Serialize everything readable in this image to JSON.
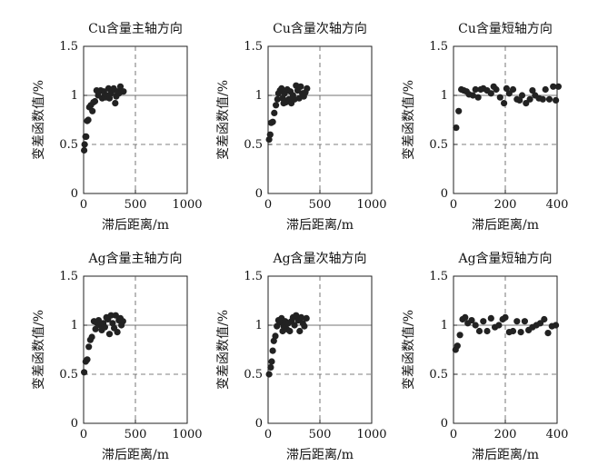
{
  "chart_data": [
    {
      "type": "scatter",
      "title": "Cu含量主轴方向",
      "xlabel": "滞后距离/m",
      "ylabel": "变差函数值/%",
      "xlim": [
        0,
        1000
      ],
      "ylim": [
        0,
        1.5
      ],
      "xticks": [
        "0",
        "500",
        "1000"
      ],
      "yticks": [
        "0",
        "0.5",
        "1",
        "1.5"
      ],
      "sill": 1,
      "nugget": 0.5,
      "range": 500,
      "points": [
        [
          5,
          0.44
        ],
        [
          10,
          0.5
        ],
        [
          18,
          0.58
        ],
        [
          25,
          0.58
        ],
        [
          35,
          0.74
        ],
        [
          45,
          0.75
        ],
        [
          55,
          0.88
        ],
        [
          70,
          0.9
        ],
        [
          85,
          0.84
        ],
        [
          95,
          0.93
        ],
        [
          110,
          0.94
        ],
        [
          125,
          1.05
        ],
        [
          140,
          1.0
        ],
        [
          150,
          1.04
        ],
        [
          165,
          1.05
        ],
        [
          180,
          0.97
        ],
        [
          195,
          1.04
        ],
        [
          205,
          1.0
        ],
        [
          215,
          0.98
        ],
        [
          225,
          1.0
        ],
        [
          240,
          1.07
        ],
        [
          250,
          0.97
        ],
        [
          265,
          1.02
        ],
        [
          275,
          1.05
        ],
        [
          290,
          1.07
        ],
        [
          305,
          0.92
        ],
        [
          315,
          0.99
        ],
        [
          325,
          1.04
        ],
        [
          340,
          1.02
        ],
        [
          355,
          1.09
        ],
        [
          370,
          1.04
        ],
        [
          385,
          1.04
        ]
      ]
    },
    {
      "type": "scatter",
      "title": "Cu含量次轴方向",
      "xlabel": "滞后距离/m",
      "ylabel": "变差函数值/%",
      "xlim": [
        0,
        1000
      ],
      "ylim": [
        0,
        1.5
      ],
      "xticks": [
        "0",
        "500",
        "1000"
      ],
      "yticks": [
        "0",
        "0.5",
        "1",
        "1.5"
      ],
      "sill": 1,
      "nugget": 0.5,
      "range": 500,
      "points": [
        [
          10,
          0.55
        ],
        [
          20,
          0.6
        ],
        [
          30,
          0.72
        ],
        [
          45,
          0.73
        ],
        [
          60,
          0.82
        ],
        [
          75,
          0.9
        ],
        [
          90,
          0.96
        ],
        [
          100,
          1.02
        ],
        [
          115,
          1.05
        ],
        [
          130,
          1.07
        ],
        [
          140,
          0.97
        ],
        [
          150,
          0.92
        ],
        [
          160,
          1.02
        ],
        [
          170,
          0.93
        ],
        [
          185,
          1.06
        ],
        [
          200,
          0.96
        ],
        [
          215,
          1.04
        ],
        [
          225,
          0.92
        ],
        [
          240,
          1.0
        ],
        [
          255,
          0.96
        ],
        [
          270,
          1.1
        ],
        [
          285,
          1.05
        ],
        [
          300,
          0.97
        ],
        [
          315,
          1.09
        ],
        [
          330,
          1.02
        ],
        [
          345,
          0.99
        ],
        [
          360,
          1.03
        ],
        [
          375,
          1.07
        ]
      ]
    },
    {
      "type": "scatter",
      "title": "Cu含量短轴方向",
      "xlabel": "滞后距离/m",
      "ylabel": "变差函数值/%",
      "xlim": [
        0,
        400
      ],
      "ylim": [
        0,
        1.5
      ],
      "xticks": [
        "0",
        "200",
        "400"
      ],
      "yticks": [
        "0",
        "0.5",
        "1",
        "1.5"
      ],
      "sill": 1,
      "nugget": 0.5,
      "range": 200,
      "points": [
        [
          10,
          0.67
        ],
        [
          20,
          0.84
        ],
        [
          30,
          1.06
        ],
        [
          40,
          1.05
        ],
        [
          50,
          1.04
        ],
        [
          60,
          1.01
        ],
        [
          75,
          1.0
        ],
        [
          85,
          1.06
        ],
        [
          95,
          0.98
        ],
        [
          105,
          1.06
        ],
        [
          115,
          1.07
        ],
        [
          130,
          1.05
        ],
        [
          145,
          1.02
        ],
        [
          155,
          1.09
        ],
        [
          165,
          1.06
        ],
        [
          180,
          0.98
        ],
        [
          195,
          0.92
        ],
        [
          205,
          1.07
        ],
        [
          215,
          1.02
        ],
        [
          230,
          1.06
        ],
        [
          245,
          0.96
        ],
        [
          255,
          0.95
        ],
        [
          265,
          1.0
        ],
        [
          280,
          0.92
        ],
        [
          295,
          0.96
        ],
        [
          305,
          1.05
        ],
        [
          315,
          1.0
        ],
        [
          330,
          0.97
        ],
        [
          345,
          0.96
        ],
        [
          355,
          1.06
        ],
        [
          370,
          0.96
        ],
        [
          385,
          1.09
        ],
        [
          395,
          0.95
        ],
        [
          405,
          1.09
        ]
      ]
    },
    {
      "type": "scatter",
      "title": "Ag含量主轴方向",
      "xlabel": "滞后距离/m",
      "ylabel": "变差函数值/%",
      "xlim": [
        0,
        1000
      ],
      "ylim": [
        0,
        1.5
      ],
      "xticks": [
        "0",
        "500",
        "1000"
      ],
      "yticks": [
        "0",
        "0.5",
        "1",
        "1.5"
      ],
      "sill": 1,
      "nugget": 0.5,
      "range": 500,
      "points": [
        [
          5,
          0.52
        ],
        [
          20,
          0.63
        ],
        [
          35,
          0.65
        ],
        [
          50,
          0.78
        ],
        [
          65,
          0.85
        ],
        [
          80,
          0.88
        ],
        [
          100,
          1.04
        ],
        [
          115,
          0.96
        ],
        [
          130,
          1.02
        ],
        [
          145,
          1.05
        ],
        [
          160,
          1.0
        ],
        [
          175,
          0.95
        ],
        [
          190,
          1.02
        ],
        [
          205,
          0.98
        ],
        [
          220,
          1.08
        ],
        [
          235,
          1.06
        ],
        [
          250,
          0.91
        ],
        [
          265,
          1.1
        ],
        [
          280,
          1.02
        ],
        [
          295,
          0.97
        ],
        [
          310,
          1.1
        ],
        [
          325,
          0.93
        ],
        [
          340,
          1.05
        ],
        [
          355,
          1.07
        ],
        [
          365,
          1.0
        ],
        [
          380,
          1.04
        ]
      ]
    },
    {
      "type": "scatter",
      "title": "Ag含量次轴方向",
      "xlabel": "滞后距离/m",
      "ylabel": "变差函数值/%",
      "xlim": [
        0,
        1000
      ],
      "ylim": [
        0,
        1.5
      ],
      "xticks": [
        "0",
        "500",
        "1000"
      ],
      "yticks": [
        "0",
        "0.5",
        "1",
        "1.5"
      ],
      "sill": 1,
      "nugget": 0.5,
      "range": 500,
      "points": [
        [
          10,
          0.5
        ],
        [
          25,
          0.57
        ],
        [
          35,
          0.63
        ],
        [
          45,
          0.74
        ],
        [
          55,
          0.84
        ],
        [
          70,
          0.89
        ],
        [
          85,
          0.99
        ],
        [
          100,
          1.05
        ],
        [
          115,
          1.03
        ],
        [
          130,
          1.07
        ],
        [
          140,
          0.94
        ],
        [
          150,
          0.99
        ],
        [
          165,
          1.04
        ],
        [
          180,
          0.96
        ],
        [
          195,
          1.02
        ],
        [
          210,
          0.94
        ],
        [
          225,
          1.04
        ],
        [
          240,
          1.08
        ],
        [
          255,
          1.0
        ],
        [
          270,
          1.1
        ],
        [
          290,
          1.05
        ],
        [
          305,
          0.94
        ],
        [
          320,
          1.08
        ],
        [
          335,
          1.02
        ],
        [
          350,
          0.99
        ],
        [
          370,
          1.07
        ]
      ]
    },
    {
      "type": "scatter",
      "title": "Ag含量短轴方向",
      "xlabel": "滞后距离/m",
      "ylabel": "变差函数值/%",
      "xlim": [
        0,
        400
      ],
      "ylim": [
        0,
        1.5
      ],
      "xticks": [
        "0",
        "200",
        "400"
      ],
      "yticks": [
        "0",
        "0.5",
        "1",
        "1.5"
      ],
      "sill": 1,
      "nugget": 0.5,
      "range": 200,
      "points": [
        [
          8,
          0.75
        ],
        [
          15,
          0.79
        ],
        [
          25,
          0.9
        ],
        [
          35,
          1.06
        ],
        [
          45,
          1.08
        ],
        [
          55,
          1.02
        ],
        [
          70,
          1.05
        ],
        [
          85,
          1.0
        ],
        [
          100,
          0.94
        ],
        [
          115,
          1.04
        ],
        [
          130,
          0.94
        ],
        [
          145,
          1.07
        ],
        [
          160,
          0.98
        ],
        [
          175,
          1.0
        ],
        [
          190,
          1.06
        ],
        [
          200,
          1.08
        ],
        [
          215,
          0.93
        ],
        [
          230,
          0.94
        ],
        [
          245,
          1.04
        ],
        [
          260,
          0.93
        ],
        [
          275,
          1.04
        ],
        [
          290,
          0.95
        ],
        [
          305,
          0.98
        ],
        [
          320,
          1.0
        ],
        [
          335,
          1.02
        ],
        [
          350,
          1.06
        ],
        [
          365,
          0.92
        ],
        [
          380,
          0.99
        ],
        [
          395,
          1.0
        ]
      ]
    }
  ]
}
